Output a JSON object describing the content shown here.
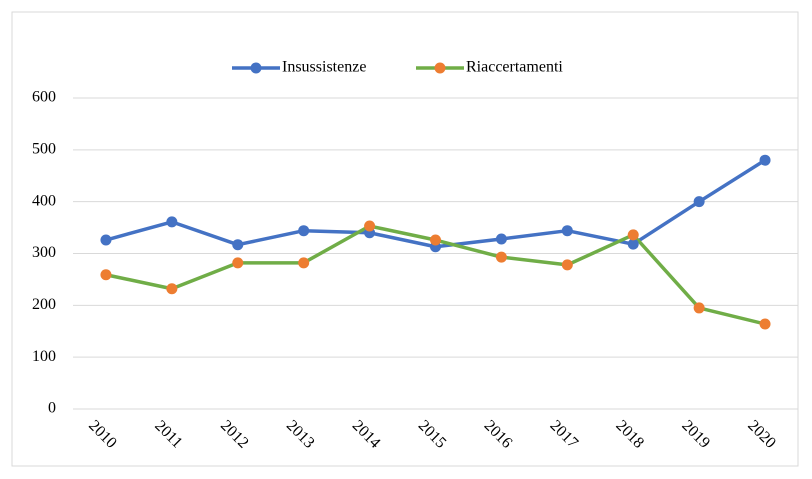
{
  "chart_data": {
    "type": "line",
    "categories": [
      "2010",
      "2011",
      "2012",
      "2013",
      "2014",
      "2015",
      "2016",
      "2017",
      "2018",
      "2019",
      "2020"
    ],
    "series": [
      {
        "name": "Insussistenze",
        "color": "#4472c4",
        "marker_color": "#4472c4",
        "values": [
          326,
          361,
          317,
          344,
          340,
          313,
          328,
          344,
          318,
          400,
          480
        ]
      },
      {
        "name": "Riaccertamenti",
        "color": "#70ad47",
        "marker_color": "#ed7d31",
        "values": [
          259,
          232,
          282,
          282,
          353,
          326,
          293,
          278,
          336,
          195,
          164
        ]
      }
    ],
    "ylim": [
      0,
      600
    ],
    "yticks": [
      0,
      100,
      200,
      300,
      400,
      500,
      600
    ],
    "grid": true,
    "legend": "top"
  }
}
